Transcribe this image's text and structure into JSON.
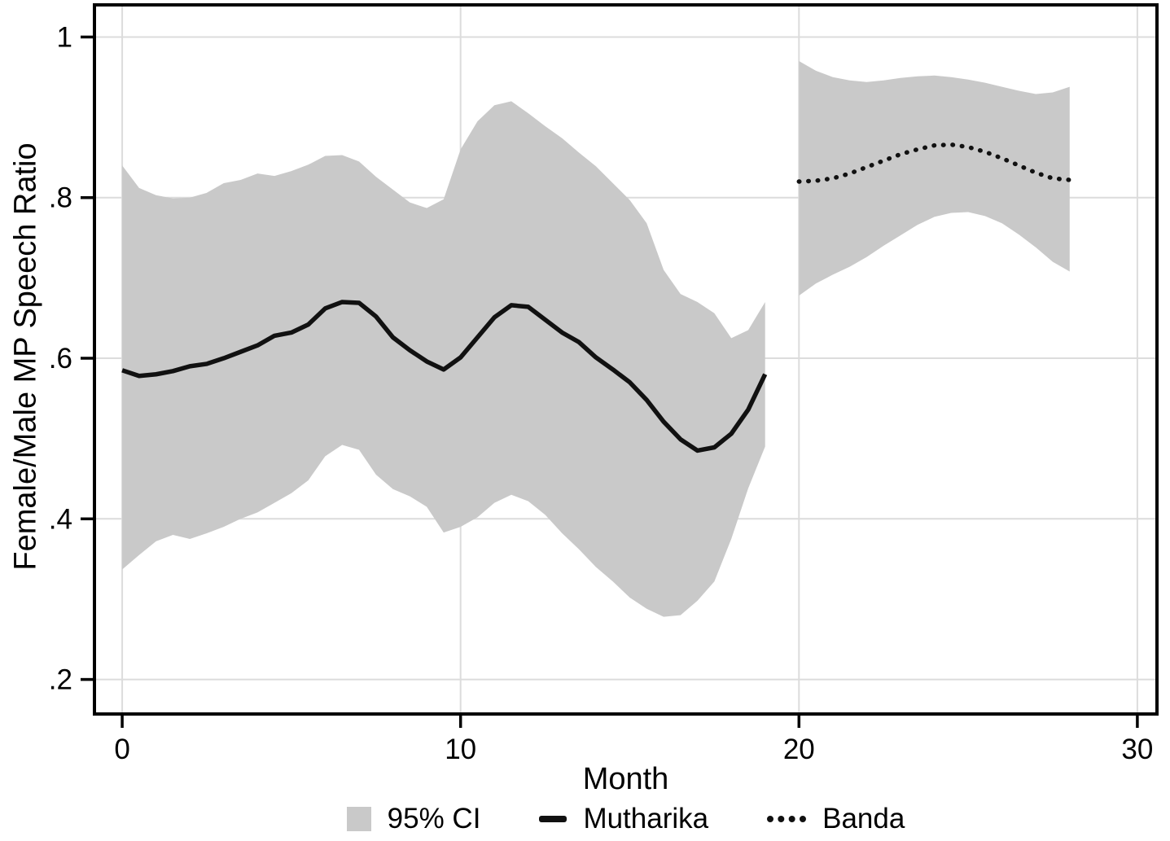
{
  "chart_data": {
    "type": "line",
    "title": "",
    "xlabel": "Month",
    "ylabel": "Female/Male MP Speech Ratio",
    "xlim": [
      -0.82,
      30.58
    ],
    "ylim": [
      0.157,
      1.04
    ],
    "xticks": [
      0,
      10,
      20,
      30
    ],
    "xtick_labels": [
      "0",
      "10",
      "20",
      "30"
    ],
    "yticks": [
      0.2,
      0.4,
      0.6,
      0.8,
      1
    ],
    "ytick_labels": [
      ".2",
      ".4",
      ".6",
      ".8",
      "1"
    ],
    "grid": true,
    "legend_position": "bottom-center",
    "colors": {
      "line": "#111111",
      "ci": "#c9c9c9",
      "grid": "#dcdcdc",
      "frame": "#000000"
    },
    "legend": [
      {
        "label": "95% CI",
        "swatch": "area"
      },
      {
        "label": "Mutharika",
        "swatch": "solid-line"
      },
      {
        "label": "Banda",
        "swatch": "dotted-line"
      }
    ],
    "series": [
      {
        "name": "Mutharika",
        "style": "solid",
        "x": [
          0,
          0.5,
          1,
          1.5,
          2,
          2.5,
          3,
          3.5,
          4,
          4.5,
          5,
          5.5,
          6,
          6.5,
          7,
          7.5,
          8,
          8.5,
          9,
          9.5,
          10,
          10.5,
          11,
          11.5,
          12,
          12.5,
          13,
          13.5,
          14,
          14.5,
          15,
          15.5,
          16,
          16.5,
          17,
          17.5,
          18,
          18.5,
          19
        ],
        "y": [
          0.585,
          0.578,
          0.58,
          0.584,
          0.59,
          0.593,
          0.6,
          0.608,
          0.616,
          0.628,
          0.632,
          0.642,
          0.662,
          0.67,
          0.669,
          0.652,
          0.626,
          0.61,
          0.596,
          0.586,
          0.601,
          0.626,
          0.651,
          0.666,
          0.664,
          0.648,
          0.632,
          0.62,
          0.601,
          0.586,
          0.57,
          0.548,
          0.521,
          0.499,
          0.485,
          0.489,
          0.506,
          0.536,
          0.58
        ],
        "ci_upper": [
          0.84,
          0.812,
          0.803,
          0.799,
          0.8,
          0.806,
          0.818,
          0.822,
          0.83,
          0.827,
          0.833,
          0.841,
          0.852,
          0.853,
          0.845,
          0.826,
          0.81,
          0.794,
          0.787,
          0.798,
          0.86,
          0.895,
          0.915,
          0.92,
          0.905,
          0.889,
          0.874,
          0.856,
          0.839,
          0.818,
          0.797,
          0.768,
          0.71,
          0.68,
          0.67,
          0.656,
          0.625,
          0.635,
          0.67
        ],
        "ci_lower": [
          0.337,
          0.355,
          0.372,
          0.38,
          0.375,
          0.382,
          0.39,
          0.4,
          0.408,
          0.42,
          0.432,
          0.448,
          0.478,
          0.492,
          0.486,
          0.455,
          0.437,
          0.428,
          0.415,
          0.383,
          0.39,
          0.402,
          0.42,
          0.43,
          0.422,
          0.405,
          0.382,
          0.362,
          0.34,
          0.322,
          0.302,
          0.288,
          0.278,
          0.28,
          0.298,
          0.322,
          0.375,
          0.438,
          0.49
        ]
      },
      {
        "name": "Banda",
        "style": "dotted",
        "x": [
          20,
          20.5,
          21,
          21.5,
          22,
          22.5,
          23,
          23.5,
          24,
          24.5,
          25,
          25.5,
          26,
          26.5,
          27,
          27.5,
          28
        ],
        "y": [
          0.82,
          0.821,
          0.824,
          0.83,
          0.838,
          0.846,
          0.854,
          0.86,
          0.865,
          0.866,
          0.863,
          0.857,
          0.849,
          0.84,
          0.831,
          0.824,
          0.822
        ],
        "ci_upper": [
          0.97,
          0.958,
          0.95,
          0.946,
          0.944,
          0.946,
          0.949,
          0.951,
          0.952,
          0.95,
          0.947,
          0.943,
          0.938,
          0.933,
          0.929,
          0.931,
          0.938
        ],
        "ci_lower": [
          0.678,
          0.693,
          0.704,
          0.714,
          0.726,
          0.74,
          0.753,
          0.766,
          0.776,
          0.781,
          0.782,
          0.777,
          0.768,
          0.754,
          0.738,
          0.72,
          0.708
        ]
      }
    ]
  }
}
